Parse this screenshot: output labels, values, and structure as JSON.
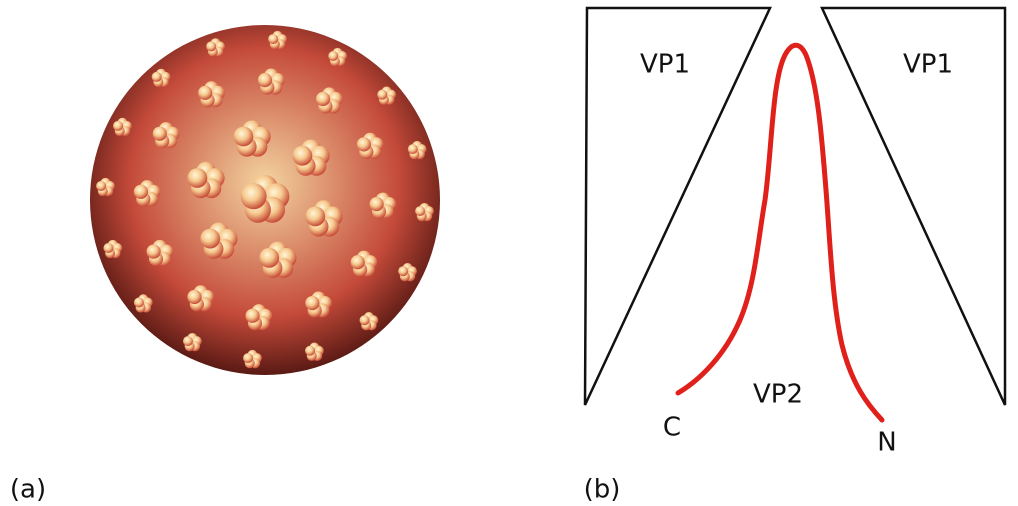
{
  "panel_a": {
    "label": "(a)"
  },
  "panel_b": {
    "label": "(b)",
    "left_protein": "VP1",
    "right_protein": "VP1",
    "center_protein": "VP2",
    "c_terminus": "C",
    "n_terminus": "N"
  }
}
